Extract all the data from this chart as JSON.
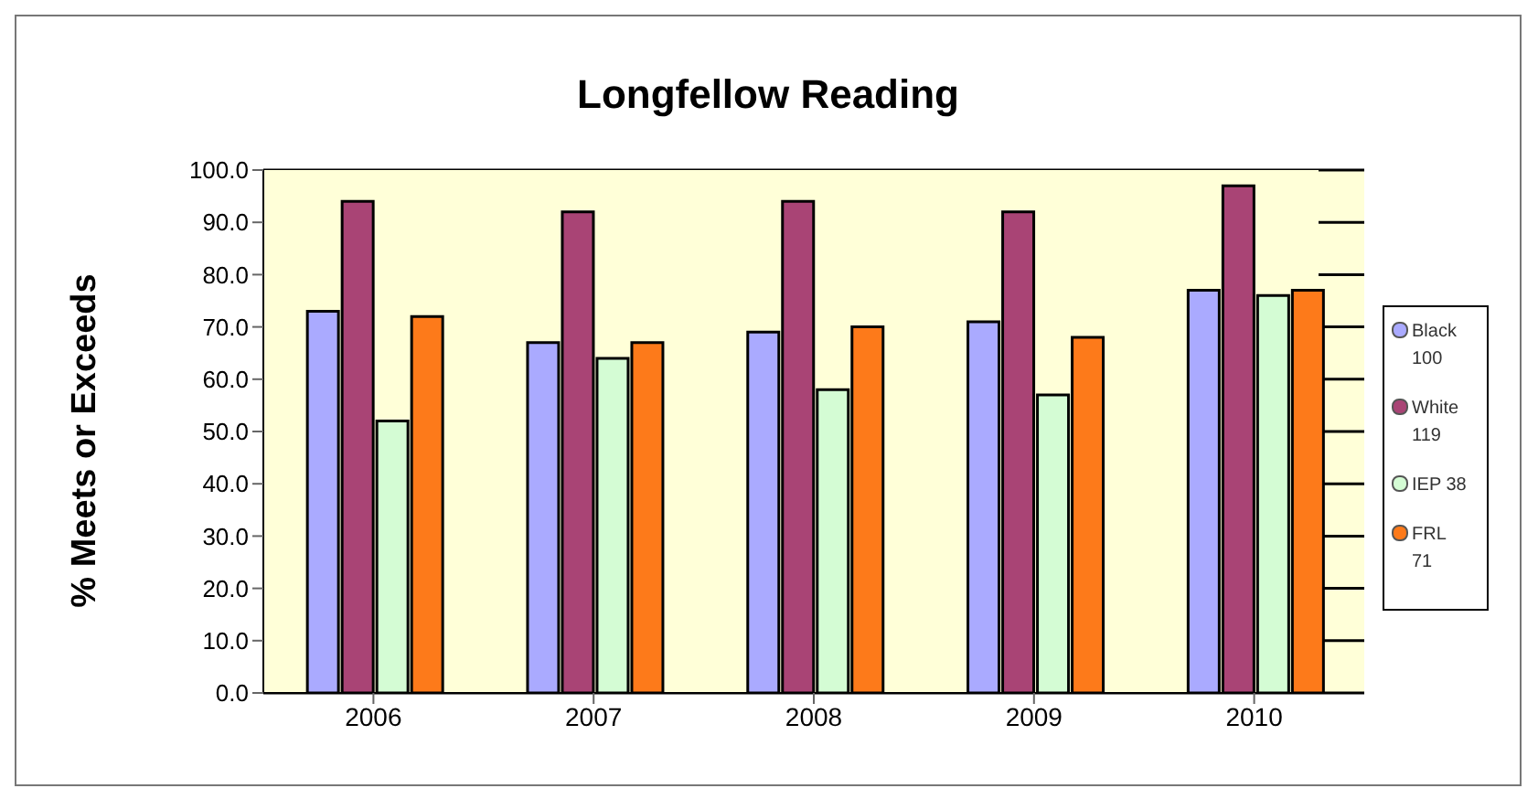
{
  "chart_data": {
    "type": "bar",
    "title": "Longfellow Reading",
    "ylabel": "% Meets or Exceeds",
    "categories": [
      "2006",
      "2007",
      "2008",
      "2009",
      "2010"
    ],
    "series": [
      {
        "name": "Black 100",
        "color": "#aaaaff",
        "values": [
          73,
          67,
          69,
          71,
          77
        ]
      },
      {
        "name": "White 119",
        "color": "#a94475",
        "values": [
          94,
          92,
          94,
          92,
          97
        ]
      },
      {
        "name": "IEP 38",
        "color": "#d4fcd4",
        "values": [
          52,
          64,
          58,
          57,
          76
        ]
      },
      {
        "name": "FRL 71",
        "color": "#fd7a1a",
        "values": [
          72,
          67,
          70,
          68,
          77
        ]
      }
    ],
    "ylim": [
      0,
      100
    ],
    "yticks": [
      {
        "value": 0,
        "label": "0.0"
      },
      {
        "value": 10,
        "label": "10.0"
      },
      {
        "value": 20,
        "label": "20.0"
      },
      {
        "value": 30,
        "label": "30.0"
      },
      {
        "value": 40,
        "label": "40.0"
      },
      {
        "value": 50,
        "label": "50.0"
      },
      {
        "value": 60,
        "label": "60.0"
      },
      {
        "value": 70,
        "label": "70.0"
      },
      {
        "value": 80,
        "label": "80.0"
      },
      {
        "value": 90,
        "label": "90.0"
      },
      {
        "value": 100,
        "label": "100.0"
      }
    ],
    "grid": "y",
    "legend": "right"
  }
}
